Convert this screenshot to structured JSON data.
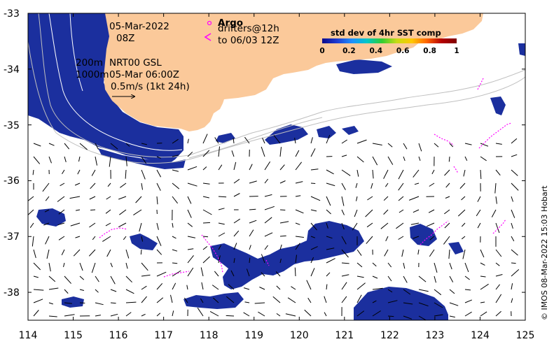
{
  "map": {
    "lon_range": [
      114,
      125
    ],
    "lat_range": [
      -38.5,
      -33
    ],
    "x_ticks": [
      "114",
      "115",
      "116",
      "117",
      "118",
      "119",
      "120",
      "121",
      "122",
      "123",
      "124",
      "125"
    ],
    "y_ticks": [
      "-33",
      "-34",
      "-35",
      "-36",
      "-37",
      "-38"
    ],
    "colors": {
      "land": "#FBC99A",
      "sst_core": "#1B2F9E",
      "sst_dark": "#0B1E7A",
      "sst_speckle": "#3FA9E0",
      "sst_green": "#3CB44A",
      "argo": "#FF00FF",
      "contour": "#BFBFBF",
      "arrow": "#000000"
    }
  },
  "annotations": {
    "date": "05-Mar-2022",
    "time": "08Z",
    "argo_label": "Argo",
    "drifters_label": "drifters@12h",
    "drifters_range": "to 06/03 12Z",
    "depth_200": "200m",
    "depth_1000": "1000m",
    "product": "NRT00 GSL",
    "product_time": "05-Mar 06:00Z",
    "scale_label": "0.5m/s (1kt 24h)"
  },
  "colorbar": {
    "title": "std dev of 4hr SST comp",
    "ticks": [
      "0",
      "0.2",
      "0.4",
      "0.6",
      "0.8",
      "1"
    ],
    "stops": [
      "#0A0A8C",
      "#1E3CD2",
      "#1E90FF",
      "#00C8C8",
      "#32CD32",
      "#C8DC14",
      "#FFC800",
      "#FF6400",
      "#B40000",
      "#800000"
    ]
  },
  "credit": "© IMOS 08-Mar-2022 15:03 Hobart"
}
